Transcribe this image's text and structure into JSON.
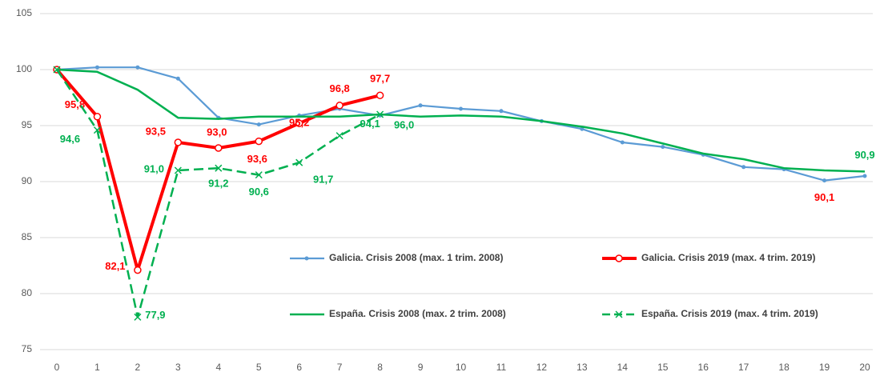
{
  "chart_data": {
    "type": "line",
    "x": [
      0,
      1,
      2,
      3,
      4,
      5,
      6,
      7,
      8,
      9,
      10,
      11,
      12,
      13,
      14,
      15,
      16,
      17,
      18,
      19,
      20
    ],
    "xlim": [
      0,
      20
    ],
    "xticks": [
      0,
      1,
      2,
      3,
      4,
      5,
      6,
      7,
      8,
      9,
      10,
      11,
      12,
      13,
      14,
      15,
      16,
      17,
      18,
      19,
      20
    ],
    "ylim": [
      75,
      105
    ],
    "yticks": [
      75,
      80,
      85,
      90,
      95,
      100,
      105
    ],
    "grid": true,
    "series": [
      {
        "name": "Galicia. Crisis 2008 (max. 1 trim. 2008)",
        "color": "#5b9bd5",
        "marker": "dot",
        "dash": false,
        "width": 2.2,
        "values": [
          100,
          100.2,
          100.2,
          99.2,
          95.7,
          95.1,
          95.9,
          96.5,
          95.9,
          96.8,
          96.5,
          96.3,
          95.4,
          94.7,
          93.5,
          93.1,
          92.4,
          91.3,
          91.1,
          90.1,
          90.5
        ],
        "value_labels": [
          null,
          null,
          null,
          null,
          null,
          null,
          null,
          null,
          null,
          null,
          null,
          null,
          null,
          null,
          null,
          null,
          null,
          null,
          null,
          "90,1",
          null
        ],
        "label_color": "#ff0000"
      },
      {
        "name": "Galicia. Crisis 2019 (max. 4 trim. 2019)",
        "color": "#ff0000",
        "marker": "circle",
        "dash": false,
        "width": 4,
        "values": [
          100,
          95.8,
          82.1,
          93.5,
          93.0,
          93.6,
          95.2,
          96.8,
          97.7,
          null,
          null,
          null,
          null,
          null,
          null,
          null,
          null,
          null,
          null,
          null,
          null
        ],
        "value_labels": [
          null,
          "95,8",
          "82,1",
          "93,5",
          "93,0",
          "93,6",
          "95,2",
          "96,8",
          "97,7",
          null,
          null,
          null,
          null,
          null,
          null,
          null,
          null,
          null,
          null,
          null,
          null
        ],
        "label_color": "#ff0000"
      },
      {
        "name": "España. Crisis 2008 (max. 2 trim. 2008)",
        "color": "#00b050",
        "marker": "none",
        "dash": false,
        "width": 2.5,
        "values": [
          100,
          99.8,
          98.2,
          95.7,
          95.6,
          95.8,
          95.8,
          95.8,
          96.0,
          95.8,
          95.9,
          95.8,
          95.4,
          94.9,
          94.3,
          93.4,
          92.5,
          92.0,
          91.2,
          91.0,
          90.9
        ],
        "value_labels": [
          null,
          null,
          null,
          null,
          null,
          null,
          null,
          null,
          null,
          null,
          null,
          null,
          null,
          null,
          null,
          null,
          null,
          null,
          null,
          null,
          "90,9"
        ],
        "label_color": "#00b050"
      },
      {
        "name": "España. Crisis 2019 (max. 4 trim. 2019)",
        "color": "#00b050",
        "marker": "x",
        "dash": true,
        "width": 2.5,
        "values": [
          100,
          94.6,
          77.9,
          91.0,
          91.2,
          90.6,
          91.7,
          94.1,
          96.0,
          null,
          null,
          null,
          null,
          null,
          null,
          null,
          null,
          null,
          null,
          null,
          null
        ],
        "value_labels": [
          null,
          "94,6",
          "77,9",
          "91,0",
          "91,2",
          "90,6",
          "91,7",
          "94,1",
          "96,0",
          null,
          null,
          null,
          null,
          null,
          null,
          null,
          null,
          null,
          null,
          null,
          null
        ],
        "label_color": "#00b050"
      }
    ]
  }
}
